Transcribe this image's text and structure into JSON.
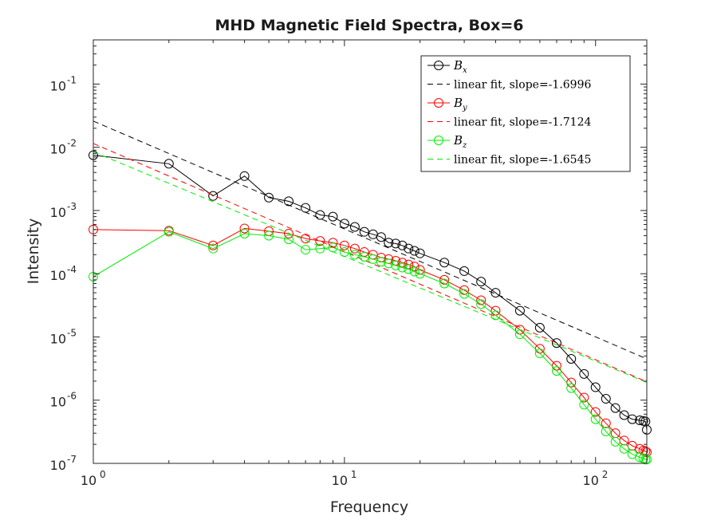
{
  "chart_data": {
    "type": "line",
    "title": "MHD Magnetic Field Spectra, Box=6",
    "xlabel": "Frequency",
    "ylabel": "Intensity",
    "xscale": "log",
    "yscale": "log",
    "xlim": [
      1,
      160
    ],
    "ylim": [
      1e-07,
      0.5
    ],
    "x_ticks": [
      {
        "value": 1,
        "base": "10",
        "exp": "0"
      },
      {
        "value": 10,
        "base": "10",
        "exp": "1"
      },
      {
        "value": 100,
        "base": "10",
        "exp": "2"
      }
    ],
    "y_ticks": [
      {
        "value": 1e-07,
        "base": "10",
        "exp": "-7"
      },
      {
        "value": 1e-06,
        "base": "10",
        "exp": "-6"
      },
      {
        "value": 1e-05,
        "base": "10",
        "exp": "-5"
      },
      {
        "value": 0.0001,
        "base": "10",
        "exp": "-4"
      },
      {
        "value": 0.001,
        "base": "10",
        "exp": "-3"
      },
      {
        "value": 0.01,
        "base": "10",
        "exp": "-2"
      },
      {
        "value": 0.1,
        "base": "10",
        "exp": "-1"
      }
    ],
    "grid": false,
    "legend_position": "top-right",
    "series": [
      {
        "name": "Bx",
        "legend_symbol": "B",
        "legend_sub": "x",
        "color": "#000000",
        "marker": "circle",
        "x": [
          1,
          2,
          3,
          4,
          5,
          6,
          7,
          8,
          9,
          10,
          11,
          12,
          13,
          14,
          15,
          16,
          17,
          18,
          19,
          20,
          25,
          30,
          35,
          40,
          50,
          60,
          70,
          80,
          90,
          100,
          110,
          120,
          130,
          140,
          150,
          155,
          158,
          160
        ],
        "y": [
          0.0075,
          0.0055,
          0.0017,
          0.0035,
          0.0016,
          0.0014,
          0.0011,
          0.00085,
          0.0008,
          0.00062,
          0.00055,
          0.00046,
          0.00042,
          0.00038,
          0.00031,
          0.0003,
          0.00028,
          0.00025,
          0.00023,
          0.00021,
          0.00015,
          0.00011,
          7.5e-05,
          5e-05,
          2.6e-05,
          1.4e-05,
          8e-06,
          4.5e-06,
          2.6e-06,
          1.6e-06,
          1.05e-06,
          7.5e-07,
          5.8e-07,
          5e-07,
          4.8e-07,
          4.7e-07,
          4.6e-07,
          3.4e-07
        ]
      },
      {
        "name": "linear fit, slope=-1.6996",
        "color": "#000000",
        "dash": true,
        "slope": -1.6996,
        "x": [
          1,
          160
        ],
        "y": [
          0.026,
          4.5e-06
        ]
      },
      {
        "name": "By",
        "legend_symbol": "B",
        "legend_sub": "y",
        "color": "#ff0000",
        "marker": "circle",
        "x": [
          1,
          2,
          3,
          4,
          5,
          6,
          7,
          8,
          9,
          10,
          11,
          12,
          13,
          14,
          15,
          16,
          17,
          18,
          19,
          20,
          25,
          30,
          35,
          40,
          50,
          60,
          70,
          80,
          90,
          100,
          110,
          120,
          130,
          140,
          150,
          155,
          158,
          160
        ],
        "y": [
          0.0005,
          0.00048,
          0.00028,
          0.00052,
          0.00047,
          0.00043,
          0.00036,
          0.00033,
          0.00031,
          0.00028,
          0.00025,
          0.00022,
          0.0002,
          0.00018,
          0.00017,
          0.00016,
          0.00015,
          0.00014,
          0.00013,
          0.000115,
          8e-05,
          5.5e-05,
          3.8e-05,
          2.6e-05,
          1.3e-05,
          6.5e-06,
          3.5e-06,
          1.9e-06,
          1.1e-06,
          6.5e-07,
          4.3e-07,
          3e-07,
          2.3e-07,
          1.9e-07,
          1.7e-07,
          1.6e-07,
          1.55e-07,
          1.5e-07
        ]
      },
      {
        "name": "linear fit, slope=-1.7124",
        "color": "#ff0000",
        "dash": true,
        "slope": -1.7124,
        "x": [
          1,
          160
        ],
        "y": [
          0.0115,
          1.95e-06
        ]
      },
      {
        "name": "Bz",
        "legend_symbol": "B",
        "legend_sub": "z",
        "color": "#00ee00",
        "marker": "circle",
        "x": [
          1,
          2,
          3,
          4,
          5,
          6,
          7,
          8,
          9,
          10,
          11,
          12,
          13,
          14,
          15,
          16,
          17,
          18,
          19,
          20,
          25,
          30,
          35,
          40,
          50,
          60,
          70,
          80,
          90,
          100,
          110,
          120,
          130,
          140,
          150,
          155,
          158,
          160
        ],
        "y": [
          9e-05,
          0.00046,
          0.00025,
          0.00043,
          0.0004,
          0.00035,
          0.00024,
          0.00025,
          0.00026,
          0.00022,
          0.0002,
          0.000185,
          0.00017,
          0.000155,
          0.000145,
          0.000135,
          0.000125,
          0.000118,
          0.000108,
          0.0001,
          7e-05,
          4.8e-05,
          3.3e-05,
          2.2e-05,
          1.1e-05,
          5.5e-06,
          2.9e-06,
          1.55e-06,
          8.5e-07,
          5e-07,
          3.2e-07,
          2.2e-07,
          1.7e-07,
          1.4e-07,
          1.25e-07,
          1.2e-07,
          1.15e-07,
          1.15e-07
        ]
      },
      {
        "name": "linear fit, slope=-1.6545",
        "color": "#00ee00",
        "dash": true,
        "slope": -1.6545,
        "x": [
          1,
          160
        ],
        "y": [
          0.0085,
          1.9e-06
        ]
      }
    ]
  }
}
